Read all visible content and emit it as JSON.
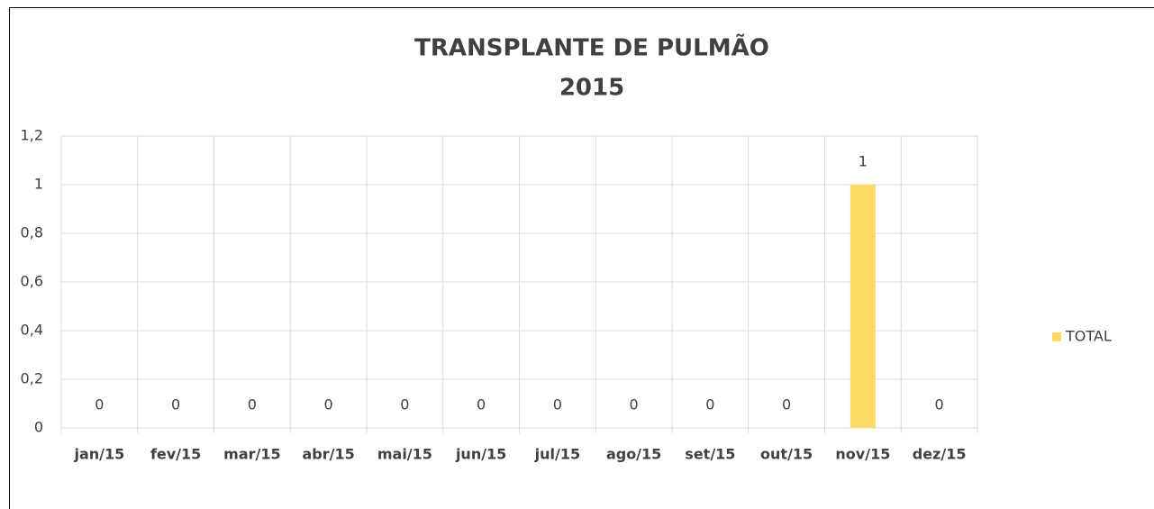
{
  "chart_data": {
    "type": "bar",
    "title": "TRANSPLANTE DE PULMÃO",
    "subtitle": "2015",
    "categories": [
      "jan/15",
      "fev/15",
      "mar/15",
      "abr/15",
      "mai/15",
      "jun/15",
      "jul/15",
      "ago/15",
      "set/15",
      "out/15",
      "nov/15",
      "dez/15"
    ],
    "series": [
      {
        "name": "TOTAL",
        "color": "#ffd966",
        "values": [
          0,
          0,
          0,
          0,
          0,
          0,
          0,
          0,
          0,
          0,
          1,
          0
        ]
      }
    ],
    "ylim": [
      0,
      1.2
    ],
    "yticks": [
      0,
      {
        "value": 0.2,
        "label": "0,2"
      },
      {
        "value": 0.4,
        "label": "0,4"
      },
      {
        "value": 0.6,
        "label": "0,6"
      },
      {
        "value": 0.8,
        "label": "0,8"
      },
      1,
      {
        "value": 1.2,
        "label": "1,2"
      }
    ],
    "grid": true,
    "legend": "right"
  }
}
